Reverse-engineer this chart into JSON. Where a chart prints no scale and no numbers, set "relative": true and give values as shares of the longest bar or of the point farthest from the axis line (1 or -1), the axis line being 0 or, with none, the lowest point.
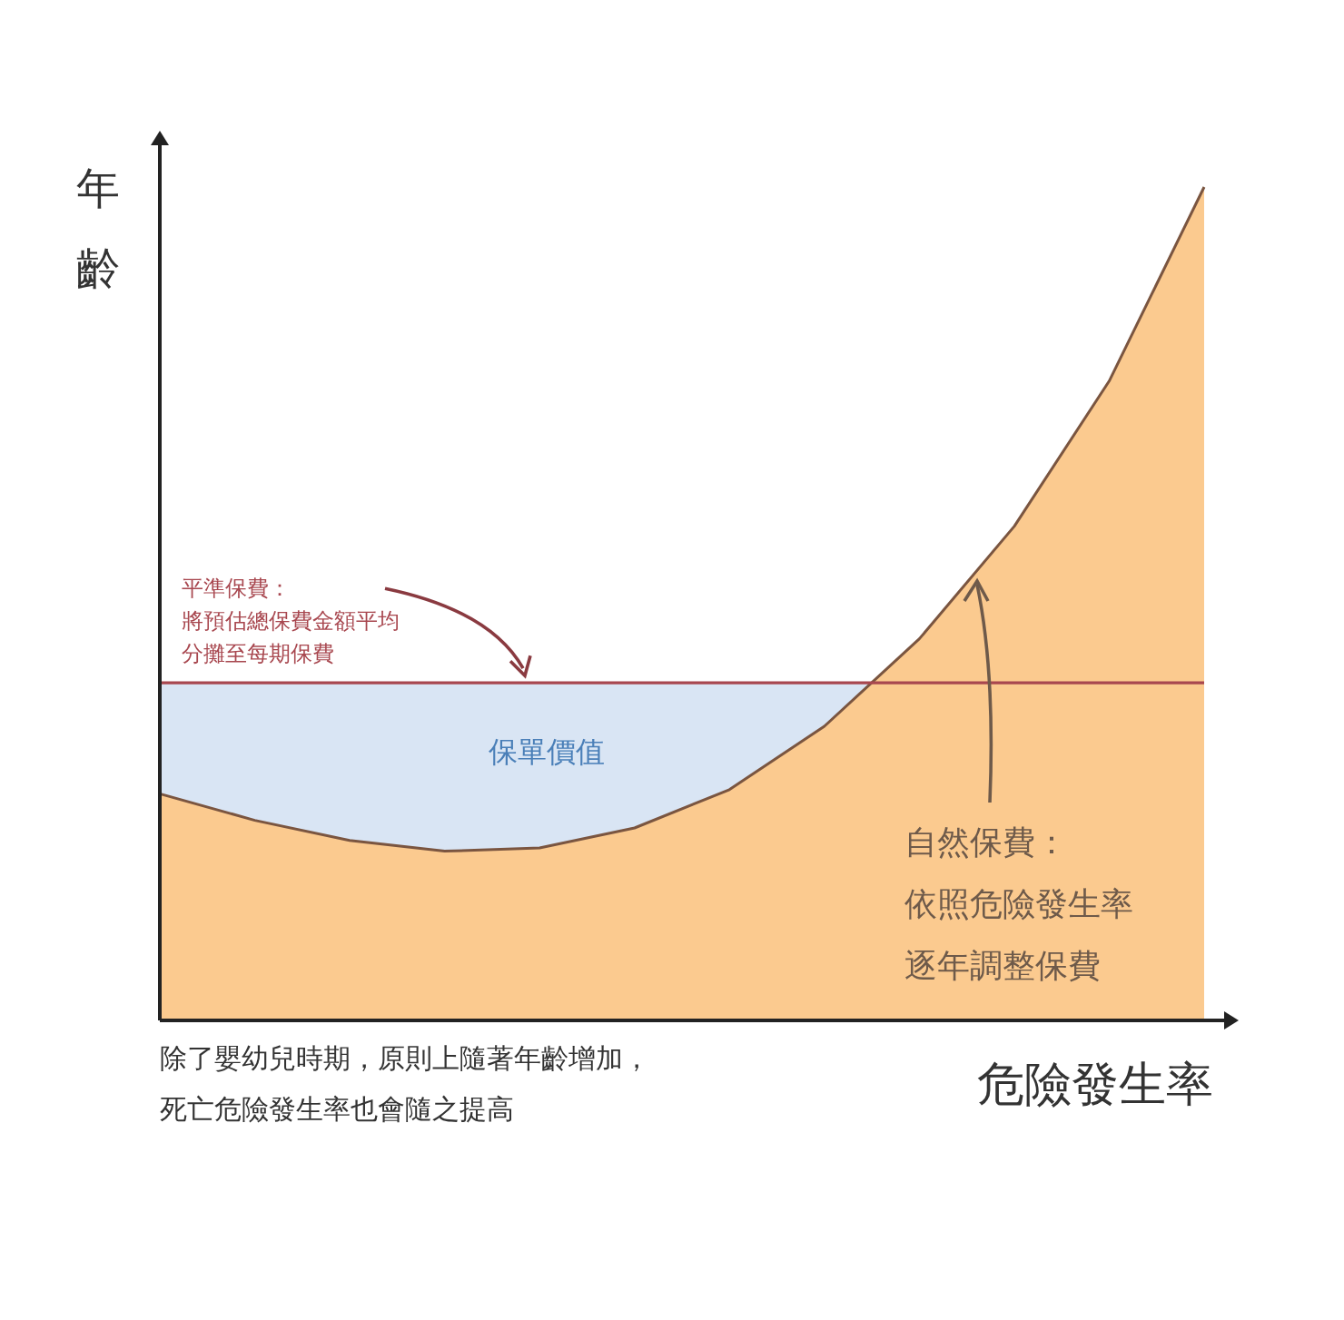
{
  "chart_data": {
    "type": "area",
    "relative": true,
    "xlabel": "危險發生率",
    "ylabel": "年齡",
    "categories": [
      null,
      null,
      null,
      null,
      null,
      null,
      null,
      null,
      null,
      null,
      null,
      null
    ],
    "series": [
      {
        "color": "#fbca8f",
        "values": [
          0.272,
          0.24,
          0.216,
          0.203,
          0.207,
          0.231,
          0.277,
          0.353,
          0.458,
          0.593,
          0.767,
          1.0
        ]
      }
    ],
    "ref_lines": [
      {
        "axis": "y",
        "value": 0.405,
        "label": "平準保費：將預估總保費金額平均分攤至每期保費",
        "color": "#a8474f"
      }
    ],
    "bands": [
      {
        "axis": "y",
        "from": 0,
        "to": 0.405,
        "label": "保單價值",
        "color": "#d9e5f4"
      }
    ],
    "annotations": [
      "自然保費：依照危險發生率逐年調整保費",
      "除了嬰幼兒時期，原則上隨著年齡增加，死亡危險發生率也會隨之提高"
    ]
  }
}
